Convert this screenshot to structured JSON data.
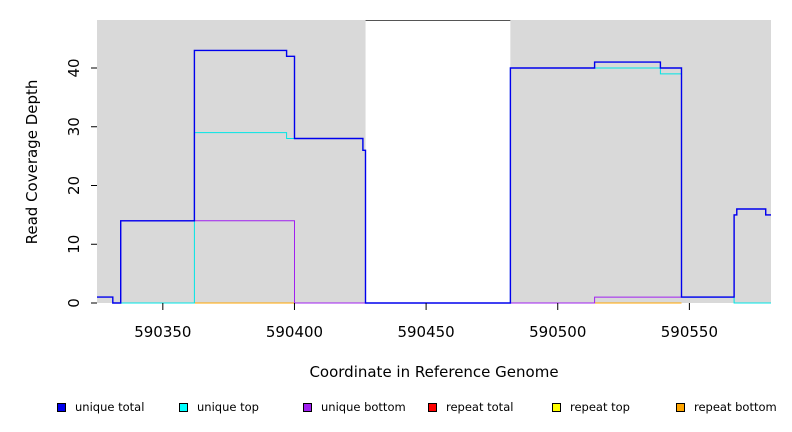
{
  "chart_data": {
    "type": "line",
    "title": "",
    "xlabel": "Coordinate in Reference Genome",
    "ylabel": "Read Coverage Depth",
    "xlim": [
      590325,
      590581
    ],
    "ylim": [
      0,
      48
    ],
    "x_ticks": [
      590350,
      590400,
      590450,
      590500,
      590550
    ],
    "y_ticks": [
      0,
      10,
      20,
      30,
      40
    ],
    "grid": false,
    "background_color": "#d9d9d9",
    "unshaded_region": [
      590427,
      590482
    ],
    "legend_placement": "bottom",
    "series": [
      {
        "name": "unique total",
        "color": "#0000ee",
        "points": [
          [
            590325,
            1
          ],
          [
            590331,
            1
          ],
          [
            590331,
            0
          ],
          [
            590334,
            0
          ],
          [
            590334,
            14
          ],
          [
            590362,
            14
          ],
          [
            590362,
            43
          ],
          [
            590397,
            43
          ],
          [
            590397,
            42
          ],
          [
            590400,
            42
          ],
          [
            590400,
            28
          ],
          [
            590426,
            28
          ],
          [
            590426,
            26
          ],
          [
            590427,
            26
          ],
          [
            590427,
            0
          ],
          [
            590482,
            0
          ],
          [
            590482,
            40
          ],
          [
            590514,
            40
          ],
          [
            590514,
            41
          ],
          [
            590539,
            41
          ],
          [
            590539,
            40
          ],
          [
            590547,
            40
          ],
          [
            590547,
            1
          ],
          [
            590567,
            1
          ],
          [
            590567,
            15
          ],
          [
            590568,
            15
          ],
          [
            590568,
            16
          ],
          [
            590579,
            16
          ],
          [
            590579,
            15
          ],
          [
            590581,
            15
          ]
        ]
      },
      {
        "name": "unique top",
        "color": "#00e5e5",
        "points": [
          [
            590334,
            0
          ],
          [
            590362,
            0
          ],
          [
            590362,
            29
          ],
          [
            590397,
            29
          ],
          [
            590397,
            28
          ],
          [
            590426,
            28
          ],
          [
            590426,
            26
          ],
          [
            590427,
            26
          ],
          [
            590427,
            0
          ],
          [
            590482,
            0
          ],
          [
            590482,
            40
          ],
          [
            590539,
            40
          ],
          [
            590539,
            39
          ],
          [
            590547,
            39
          ],
          [
            590547,
            1
          ],
          [
            590567,
            1
          ],
          [
            590567,
            0
          ],
          [
            590581,
            0
          ]
        ]
      },
      {
        "name": "unique bottom",
        "color": "#a020f0",
        "points": [
          [
            590334,
            0
          ],
          [
            590334,
            14
          ],
          [
            590362,
            14
          ],
          [
            590400,
            14
          ],
          [
            590400,
            0
          ],
          [
            590514,
            0
          ],
          [
            590514,
            1
          ],
          [
            590547,
            1
          ],
          [
            590547,
            1
          ],
          [
            590567,
            1
          ],
          [
            590567,
            15
          ],
          [
            590568,
            15
          ],
          [
            590568,
            16
          ],
          [
            590579,
            16
          ],
          [
            590579,
            15
          ],
          [
            590581,
            15
          ]
        ]
      },
      {
        "name": "repeat total",
        "color": "#ff0000",
        "points": [
          [
            590400,
            0
          ],
          [
            590514,
            0
          ]
        ]
      },
      {
        "name": "repeat top",
        "color": "#ffff00",
        "points": []
      },
      {
        "name": "repeat bottom",
        "color": "#ffa500",
        "points": [
          [
            590334,
            0
          ],
          [
            590400,
            0
          ],
          [
            590514,
            0
          ],
          [
            590547,
            0
          ]
        ]
      }
    ],
    "legend": [
      {
        "label": "unique total",
        "color": "#0000ee"
      },
      {
        "label": "unique top",
        "color": "#00ffff"
      },
      {
        "label": "unique bottom",
        "color": "#a020f0"
      },
      {
        "label": "repeat total",
        "color": "#ff0000"
      },
      {
        "label": "repeat top",
        "color": "#ffff00"
      },
      {
        "label": "repeat bottom",
        "color": "#ffa500"
      }
    ]
  }
}
